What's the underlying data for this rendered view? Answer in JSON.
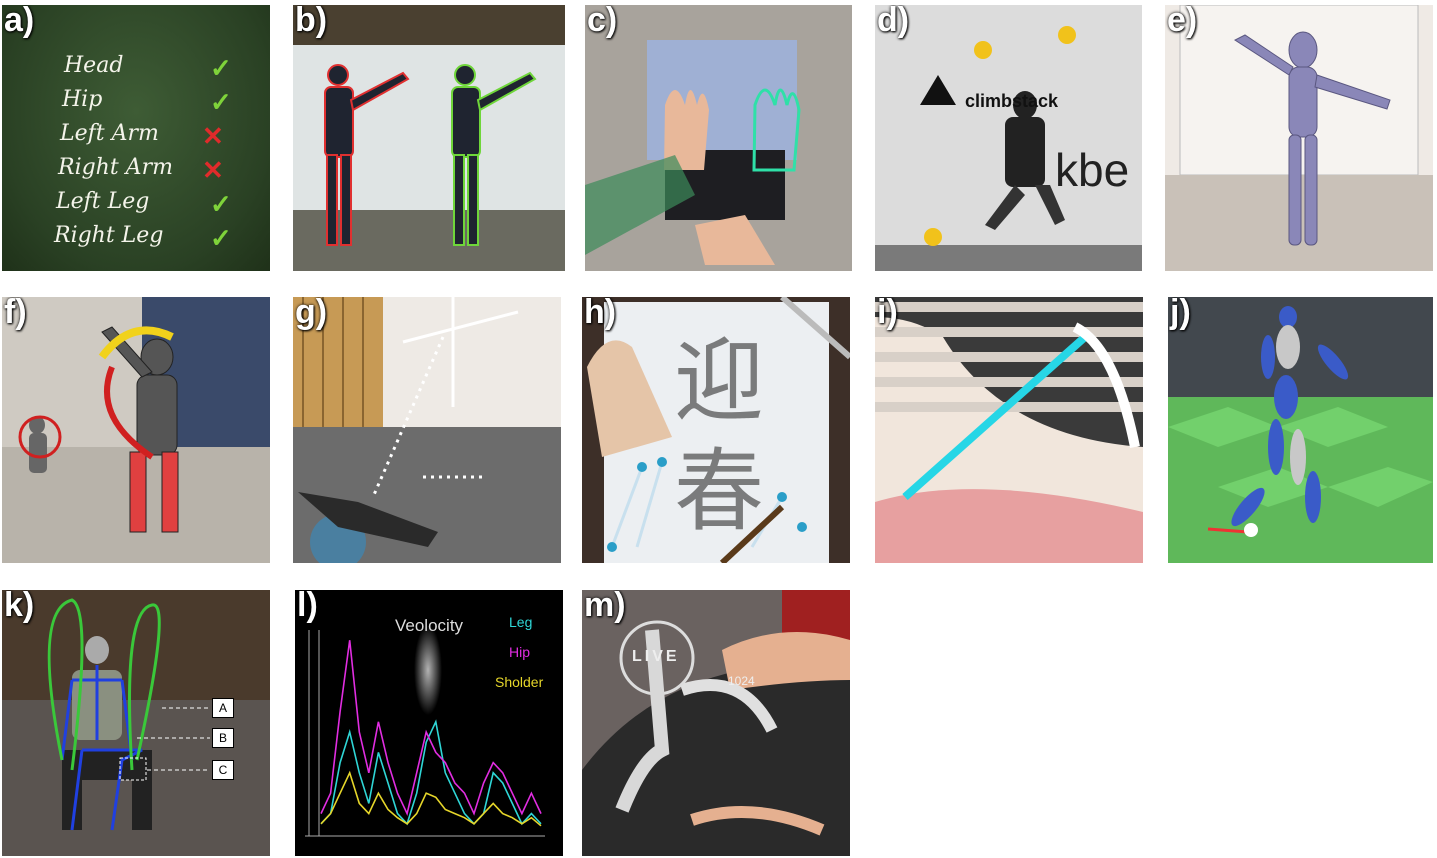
{
  "panels": {
    "a": {
      "label": "a)",
      "items": [
        {
          "text": "Head",
          "status": "check"
        },
        {
          "text": "Hip",
          "status": "check"
        },
        {
          "text": "Left Arm",
          "status": "cross"
        },
        {
          "text": "Right Arm",
          "status": "cross"
        },
        {
          "text": "Left Leg",
          "status": "check"
        },
        {
          "text": "Right Leg",
          "status": "check"
        }
      ],
      "check_glyph": "✓",
      "cross_glyph": "✕"
    },
    "b": {
      "label": "b)"
    },
    "c": {
      "label": "c)"
    },
    "d": {
      "label": "d)",
      "wall_text_1": "climbstack",
      "wall_text_2": "kbe"
    },
    "e": {
      "label": "e)"
    },
    "f": {
      "label": "f)"
    },
    "g": {
      "label": "g)"
    },
    "h": {
      "label": "h)",
      "calligraphy": "迎 春"
    },
    "i": {
      "label": "i)"
    },
    "j": {
      "label": "j)"
    },
    "k": {
      "label": "k)",
      "tags": [
        "A",
        "B",
        "C"
      ]
    },
    "l": {
      "label": "l)",
      "title": "Veolocity",
      "legend": [
        "Leg",
        "Hip",
        "Sholder"
      ]
    },
    "m": {
      "label": "m)",
      "overlay_text": "LIVE",
      "counter": "1024"
    }
  },
  "colors": {
    "chalkboard": "#2f4a2a",
    "check": "#7fd33a",
    "cross": "#e02b2b",
    "leg_series": "#2fd6d6",
    "hip_series": "#e12de1",
    "shoulder_series": "#e6d62a",
    "mannequin": "#8a87b8"
  },
  "chart_data": {
    "type": "line",
    "title": "Veolocity",
    "series": [
      {
        "name": "Leg",
        "values": [
          0.05,
          0.1,
          0.35,
          0.5,
          0.3,
          0.15,
          0.4,
          0.25,
          0.1,
          0.05,
          0.2,
          0.45,
          0.55,
          0.3,
          0.2,
          0.1,
          0.05,
          0.1,
          0.3,
          0.25,
          0.15,
          0.05,
          0.1,
          0.05
        ]
      },
      {
        "name": "Hip",
        "values": [
          0.1,
          0.2,
          0.6,
          0.95,
          0.5,
          0.3,
          0.55,
          0.35,
          0.2,
          0.1,
          0.3,
          0.5,
          0.4,
          0.35,
          0.25,
          0.2,
          0.1,
          0.25,
          0.35,
          0.3,
          0.2,
          0.1,
          0.2,
          0.1
        ]
      },
      {
        "name": "Sholder",
        "values": [
          0.05,
          0.1,
          0.2,
          0.3,
          0.15,
          0.1,
          0.2,
          0.12,
          0.08,
          0.05,
          0.1,
          0.2,
          0.18,
          0.12,
          0.1,
          0.08,
          0.05,
          0.1,
          0.15,
          0.1,
          0.08,
          0.05,
          0.08,
          0.04
        ]
      }
    ]
  }
}
